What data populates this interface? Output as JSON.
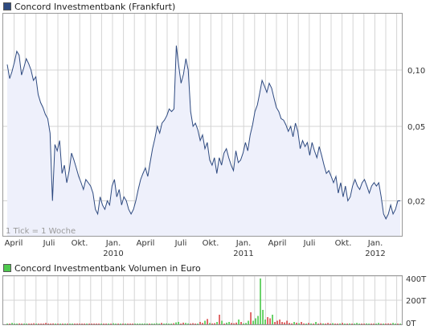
{
  "price_chart": {
    "legend_label": "Concord Investmentbank (Frankfurt)",
    "legend_color": "#2e4a80",
    "tick_note": "1 Tick = 1 Woche",
    "y_tick_labels": [
      "0,10",
      "0,05",
      "0,02"
    ],
    "x_month_labels": [
      "April",
      "Juli",
      "Okt.",
      "Jan.",
      "April",
      "Juli",
      "Okt.",
      "Jan.",
      "April",
      "Juli",
      "Okt.",
      "Jan."
    ],
    "x_year_labels": [
      "2010",
      "2011",
      "2012"
    ]
  },
  "volume_chart": {
    "legend_label": "Concord Investmentbank Volumen in Euro",
    "legend_color": "#4ec94e",
    "y_tick_labels": [
      "400T",
      "200T",
      "0T"
    ]
  },
  "colors": {
    "line": "#2e4a80",
    "area_fill": "#eef0fb",
    "grid": "#d4d4d4",
    "axis": "#999999",
    "volume_up": "#3cc43c",
    "volume_down": "#d63a3a"
  },
  "chart_data": [
    {
      "type": "area",
      "title": "Concord Investmentbank (Frankfurt)",
      "x_unit": "week",
      "x_start": "2009-03",
      "x_end": "2012-03",
      "y_scale": "log",
      "y_ticks": [
        0.1,
        0.05,
        0.02
      ],
      "ylim": [
        0.013,
        0.2
      ],
      "grid": true,
      "values": [
        0.107,
        0.09,
        0.098,
        0.11,
        0.126,
        0.12,
        0.094,
        0.103,
        0.115,
        0.108,
        0.1,
        0.088,
        0.092,
        0.074,
        0.067,
        0.063,
        0.058,
        0.055,
        0.046,
        0.02,
        0.04,
        0.037,
        0.042,
        0.028,
        0.031,
        0.025,
        0.029,
        0.036,
        0.033,
        0.03,
        0.027,
        0.025,
        0.023,
        0.026,
        0.025,
        0.024,
        0.022,
        0.018,
        0.017,
        0.021,
        0.019,
        0.018,
        0.02,
        0.019,
        0.024,
        0.026,
        0.021,
        0.023,
        0.019,
        0.021,
        0.02,
        0.018,
        0.017,
        0.018,
        0.02,
        0.023,
        0.026,
        0.028,
        0.03,
        0.027,
        0.032,
        0.038,
        0.043,
        0.05,
        0.046,
        0.052,
        0.054,
        0.057,
        0.062,
        0.06,
        0.062,
        0.135,
        0.105,
        0.085,
        0.095,
        0.115,
        0.1,
        0.06,
        0.05,
        0.052,
        0.048,
        0.042,
        0.045,
        0.038,
        0.041,
        0.033,
        0.031,
        0.034,
        0.028,
        0.034,
        0.031,
        0.036,
        0.038,
        0.034,
        0.031,
        0.029,
        0.037,
        0.032,
        0.033,
        0.036,
        0.041,
        0.037,
        0.045,
        0.051,
        0.06,
        0.065,
        0.075,
        0.088,
        0.082,
        0.076,
        0.085,
        0.08,
        0.071,
        0.063,
        0.06,
        0.055,
        0.054,
        0.051,
        0.047,
        0.05,
        0.044,
        0.052,
        0.047,
        0.038,
        0.042,
        0.039,
        0.041,
        0.035,
        0.041,
        0.037,
        0.034,
        0.039,
        0.035,
        0.031,
        0.028,
        0.029,
        0.027,
        0.025,
        0.027,
        0.022,
        0.025,
        0.021,
        0.024,
        0.02,
        0.021,
        0.024,
        0.026,
        0.024,
        0.023,
        0.025,
        0.026,
        0.024,
        0.022,
        0.024,
        0.025,
        0.024,
        0.025,
        0.021,
        0.017,
        0.016,
        0.017,
        0.019,
        0.017,
        0.018,
        0.02,
        0.02
      ]
    },
    {
      "type": "bar",
      "title": "Concord Investmentbank Volumen in Euro",
      "x_unit": "week",
      "y_unit": "Euro",
      "y_ticks": [
        400000,
        200000,
        0
      ],
      "ylim": [
        0,
        400000
      ],
      "grid": true,
      "values": [
        2000,
        3000,
        12000,
        5000,
        4000,
        8000,
        3000,
        2000,
        6000,
        4000,
        3000,
        9000,
        2000,
        3000,
        5000,
        4000,
        12000,
        3000,
        2000,
        8000,
        4000,
        3000,
        6000,
        2000,
        3000,
        5000,
        4000,
        2000,
        3000,
        2000,
        4000,
        3000,
        2000,
        6000,
        3000,
        2000,
        4000,
        5000,
        3000,
        2000,
        3000,
        4000,
        2000,
        3000,
        9000,
        2000,
        3000,
        4000,
        2000,
        3000,
        2000,
        6000,
        3000,
        2000,
        4000,
        3000,
        2000,
        5000,
        3000,
        4000,
        2000,
        3000,
        9000,
        4000,
        12000,
        6000,
        8000,
        5000,
        4000,
        9000,
        16000,
        20000,
        5000,
        14000,
        12000,
        8000,
        6000,
        10000,
        4000,
        6000,
        20000,
        12000,
        30000,
        45000,
        12000,
        8000,
        10000,
        20000,
        80000,
        30000,
        6000,
        14000,
        20000,
        12000,
        9000,
        15000,
        40000,
        20000,
        8000,
        12000,
        30000,
        100000,
        30000,
        50000,
        70000,
        380000,
        120000,
        40000,
        60000,
        50000,
        80000,
        20000,
        30000,
        40000,
        20000,
        16000,
        30000,
        12000,
        8000,
        20000,
        14000,
        10000,
        20000,
        8000,
        6000,
        12000,
        8000,
        4000,
        20000,
        6000,
        10000,
        8000,
        4000,
        12000,
        6000,
        10000,
        4000,
        6000,
        8000,
        12000,
        4000,
        6000,
        8000,
        3000,
        5000,
        12000,
        4000,
        6000,
        3000,
        8000,
        5000,
        4000,
        6000,
        3000,
        12000,
        4000,
        5000,
        3000,
        8000,
        6000,
        12000,
        4000,
        3000,
        5000
      ]
    }
  ]
}
